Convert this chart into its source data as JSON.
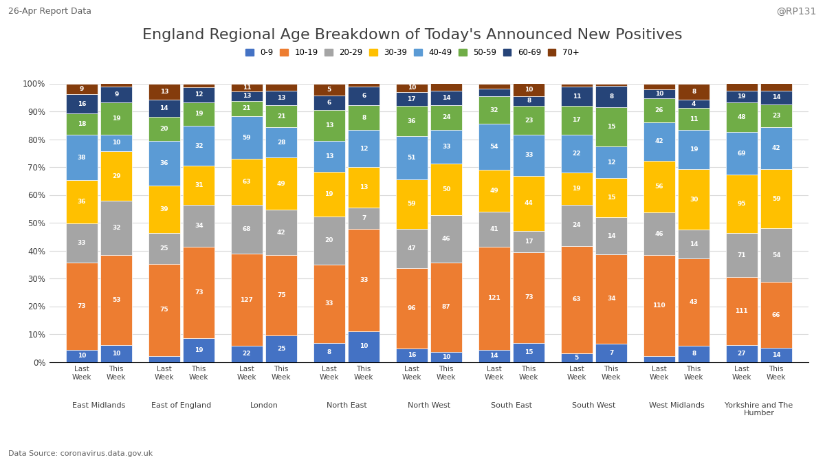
{
  "title": "England Regional Age Breakdown of Today's Announced New Positives",
  "top_left_label": "26-Apr Report Data",
  "top_right_label": "@RP131",
  "bottom_label": "Data Source: coronavirus.data.gov.uk",
  "regions": [
    "East Midlands",
    "East of England",
    "London",
    "North East",
    "North West",
    "South East",
    "South West",
    "West Midlands",
    "Yorkshire and The\nHumber"
  ],
  "age_groups": [
    "0-9",
    "10-19",
    "20-29",
    "30-39",
    "40-49",
    "50-59",
    "60-69",
    "70+"
  ],
  "colors": [
    "#4472C4",
    "#ED7D31",
    "#A5A5A5",
    "#FFC000",
    "#5B9BD5",
    "#70AD47",
    "#264478",
    "#843C0C"
  ],
  "data": {
    "East Midlands": {
      "Last Week": [
        10,
        73,
        33,
        36,
        38,
        18,
        16,
        9
      ],
      "This Week": [
        10,
        53,
        32,
        29,
        10,
        19,
        9,
        2
      ]
    },
    "East of England": {
      "Last Week": [
        5,
        75,
        25,
        39,
        36,
        20,
        14,
        13
      ],
      "This Week": [
        19,
        73,
        34,
        31,
        32,
        19,
        12,
        3
      ]
    },
    "London": {
      "Last Week": [
        22,
        127,
        68,
        63,
        59,
        21,
        13,
        11
      ],
      "This Week": [
        25,
        75,
        42,
        49,
        28,
        21,
        13,
        7
      ]
    },
    "North East": {
      "Last Week": [
        8,
        33,
        20,
        19,
        13,
        13,
        6,
        5
      ],
      "This Week": [
        10,
        33,
        7,
        13,
        12,
        8,
        6,
        1
      ]
    },
    "North West": {
      "Last Week": [
        16,
        96,
        47,
        59,
        51,
        36,
        17,
        10
      ],
      "This Week": [
        10,
        87,
        46,
        50,
        33,
        24,
        14,
        7
      ]
    },
    "South East": {
      "Last Week": [
        14,
        121,
        41,
        49,
        54,
        32,
        9,
        6
      ],
      "This Week": [
        15,
        73,
        17,
        44,
        33,
        23,
        8,
        10
      ]
    },
    "South West": {
      "Last Week": [
        5,
        63,
        24,
        19,
        22,
        17,
        11,
        2
      ],
      "This Week": [
        7,
        34,
        14,
        15,
        12,
        15,
        8,
        1
      ]
    },
    "West Midlands": {
      "Last Week": [
        6,
        110,
        46,
        56,
        42,
        26,
        10,
        6
      ],
      "This Week": [
        8,
        43,
        14,
        30,
        19,
        11,
        4,
        8
      ]
    },
    "Yorkshire and The\nHumber": {
      "Last Week": [
        27,
        111,
        71,
        95,
        69,
        48,
        19,
        12
      ],
      "This Week": [
        14,
        66,
        54,
        59,
        42,
        23,
        14,
        7
      ]
    }
  },
  "bar_width": 0.38,
  "background_color": "#FFFFFF",
  "grid_color": "#D9D9D9"
}
